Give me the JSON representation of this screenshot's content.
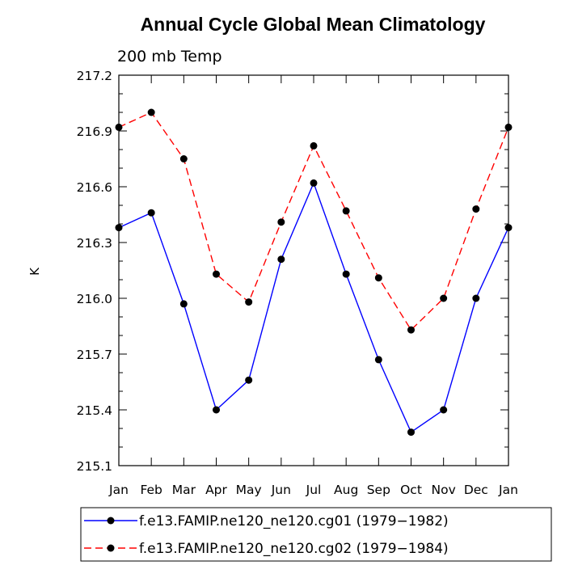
{
  "chart_data": {
    "type": "line",
    "title": "Annual Cycle Global Mean Climatology",
    "subtitle": "200 mb Temp",
    "xlabel": "",
    "ylabel": "K",
    "categories": [
      "Jan",
      "Feb",
      "Mar",
      "Apr",
      "May",
      "Jun",
      "Jul",
      "Aug",
      "Sep",
      "Oct",
      "Nov",
      "Dec",
      "Jan"
    ],
    "ylim": [
      215.1,
      217.2
    ],
    "yticks": [
      "215.1",
      "215.4",
      "215.7",
      "216.0",
      "216.3",
      "216.6",
      "216.9",
      "217.2"
    ],
    "grid": false,
    "legend_position": "bottom",
    "series": [
      {
        "name": "f.e13.FAMIP.ne120_ne120.cg01 (1979−1982)",
        "color": "#0000ff",
        "dash": "solid",
        "values": [
          216.38,
          216.46,
          215.97,
          215.4,
          215.56,
          216.21,
          216.62,
          216.13,
          215.67,
          215.28,
          215.4,
          216.0,
          216.38
        ]
      },
      {
        "name": "f.e13.FAMIP.ne120_ne120.cg02 (1979−1984)",
        "color": "#ff0000",
        "dash": "dashed",
        "values": [
          216.92,
          217.0,
          216.75,
          216.13,
          215.98,
          216.41,
          216.82,
          216.47,
          216.11,
          215.83,
          216.0,
          216.48,
          216.92
        ]
      }
    ]
  }
}
